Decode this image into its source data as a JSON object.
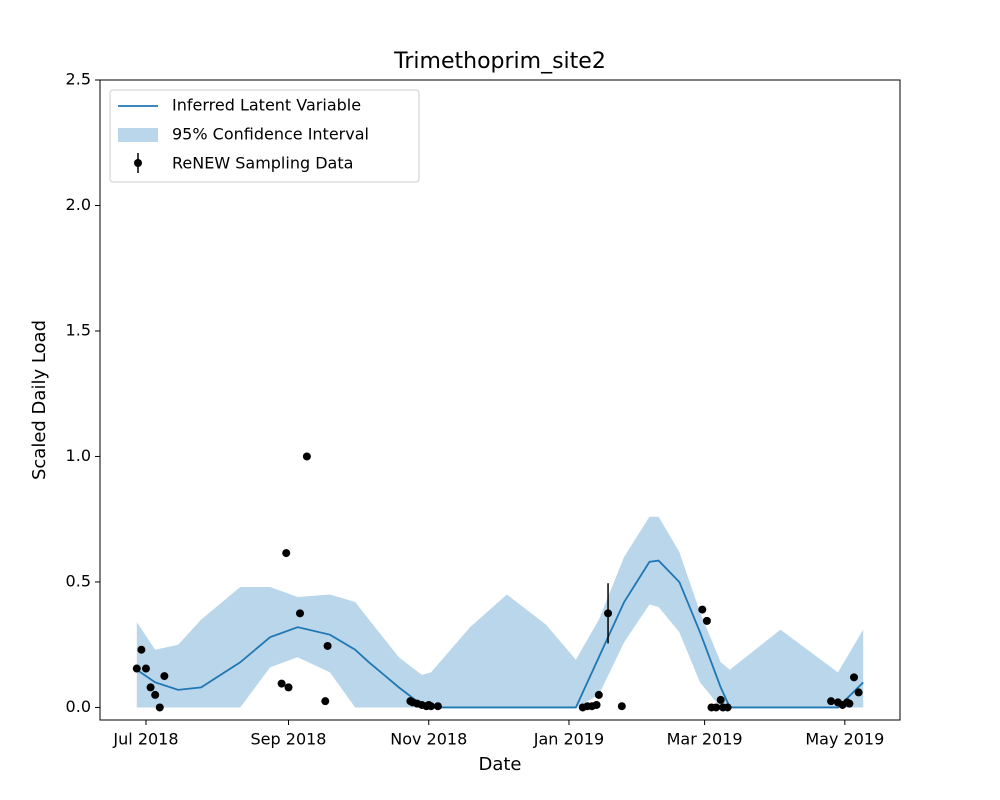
{
  "chart_data": {
    "type": "line",
    "title": "Trimethoprim_site2",
    "xlabel": "Date",
    "ylabel": "Scaled Daily Load",
    "xlim": [
      "2018-06-11",
      "2019-05-25"
    ],
    "xticks": [
      {
        "value": "2018-07-01",
        "label": "Jul 2018"
      },
      {
        "value": "2018-09-01",
        "label": "Sep 2018"
      },
      {
        "value": "2018-11-01",
        "label": "Nov 2018"
      },
      {
        "value": "2019-01-01",
        "label": "Jan 2019"
      },
      {
        "value": "2019-03-01",
        "label": "Mar 2019"
      },
      {
        "value": "2019-05-01",
        "label": "May 2019"
      }
    ],
    "ylim": [
      -0.05,
      2.5
    ],
    "yticks": [
      {
        "value": 0,
        "label": "0.0"
      },
      {
        "value": 0.5,
        "label": "0.5"
      },
      {
        "value": 1,
        "label": "1.0"
      },
      {
        "value": 1.5,
        "label": "1.5"
      },
      {
        "value": 2,
        "label": "2.0"
      },
      {
        "value": 2.5,
        "label": "2.5"
      }
    ],
    "legend": "upper left",
    "x": [
      "2018-06-27",
      "2018-07-05",
      "2018-07-15",
      "2018-07-25",
      "2018-08-11",
      "2018-08-24",
      "2018-09-05",
      "2018-09-19",
      "2018-09-30",
      "2018-10-06",
      "2018-10-19",
      "2018-10-29",
      "2018-11-02",
      "2018-11-19",
      "2018-12-05",
      "2018-12-22",
      "2019-01-04",
      "2019-01-14",
      "2019-01-25",
      "2019-02-05",
      "2019-02-09",
      "2019-02-18",
      "2019-02-27",
      "2019-03-08",
      "2019-03-12",
      "2019-04-03",
      "2019-04-28",
      "2019-05-09"
    ],
    "series": [
      {
        "name": "Inferred Latent Variable",
        "color": "#1f77b4",
        "values": [
          0.15,
          0.1,
          0.07,
          0.08,
          0.18,
          0.28,
          0.32,
          0.29,
          0.23,
          0.18,
          0.08,
          0.01,
          0.0,
          0.0,
          0.0,
          0.0,
          0.0,
          0.2,
          0.42,
          0.58,
          0.585,
          0.5,
          0.3,
          0.08,
          0.0,
          0.0,
          0.0,
          0.1
        ]
      }
    ],
    "band": {
      "name": "95% Confidence Interval",
      "color": "#bad6ea",
      "upper": [
        0.34,
        0.23,
        0.25,
        0.35,
        0.48,
        0.48,
        0.44,
        0.45,
        0.42,
        0.35,
        0.2,
        0.13,
        0.14,
        0.32,
        0.45,
        0.33,
        0.19,
        0.35,
        0.6,
        0.76,
        0.76,
        0.62,
        0.38,
        0.18,
        0.15,
        0.31,
        0.14,
        0.31
      ],
      "lower": [
        0,
        0,
        0,
        0,
        0,
        0.16,
        0.2,
        0.14,
        0,
        0,
        0,
        0,
        0,
        0,
        0,
        0,
        0,
        0.05,
        0.26,
        0.41,
        0.4,
        0.3,
        0.1,
        0,
        0,
        0,
        0,
        0
      ]
    },
    "scatter": {
      "name": "ReNEW Sampling Data",
      "color": "#000000",
      "x": [
        "2018-06-27",
        "2018-06-29",
        "2018-07-01",
        "2018-07-03",
        "2018-07-05",
        "2018-07-07",
        "2018-07-09",
        "2018-08-29",
        "2018-08-31",
        "2018-09-01",
        "2018-09-06",
        "2018-09-09",
        "2018-09-17",
        "2018-09-18",
        "2018-10-24",
        "2018-10-25",
        "2018-10-27",
        "2018-10-29",
        "2018-10-31",
        "2018-11-01",
        "2018-11-02",
        "2018-11-05",
        "2019-01-07",
        "2019-01-09",
        "2019-01-11",
        "2019-01-13",
        "2019-01-14",
        "2019-01-18",
        "2019-01-24",
        "2019-02-28",
        "2019-03-02",
        "2019-03-04",
        "2019-03-06",
        "2019-03-08",
        "2019-03-09",
        "2019-03-11",
        "2019-04-25",
        "2019-04-28",
        "2019-04-30",
        "2019-05-02",
        "2019-05-03",
        "2019-05-05",
        "2019-05-07"
      ],
      "values": [
        0.155,
        0.23,
        0.155,
        0.08,
        0.05,
        0.0,
        0.125,
        0.095,
        0.615,
        0.08,
        0.375,
        1.0,
        0.025,
        0.245,
        0.025,
        0.02,
        0.015,
        0.01,
        0.005,
        0.01,
        0.005,
        0.005,
        0.0,
        0.005,
        0.005,
        0.01,
        0.05,
        0.375,
        0.005,
        0.39,
        0.345,
        0.0,
        0.0,
        0.03,
        0.0,
        0.0,
        0.025,
        0.02,
        0.01,
        0.02,
        0.015,
        0.12,
        0.06
      ],
      "errors": [
        0.005,
        0.005,
        0.005,
        0.005,
        0.005,
        0.005,
        0.005,
        0.005,
        0.015,
        0.005,
        0.005,
        0.005,
        0.005,
        0.005,
        0.005,
        0.005,
        0.005,
        0.005,
        0.005,
        0.005,
        0.005,
        0.005,
        0.005,
        0.005,
        0.005,
        0.005,
        0.005,
        0.12,
        0.005,
        0.005,
        0.015,
        0.005,
        0.005,
        0.005,
        0.005,
        0.005,
        0.005,
        0.005,
        0.005,
        0.005,
        0.005,
        0.005,
        0.005
      ]
    }
  }
}
